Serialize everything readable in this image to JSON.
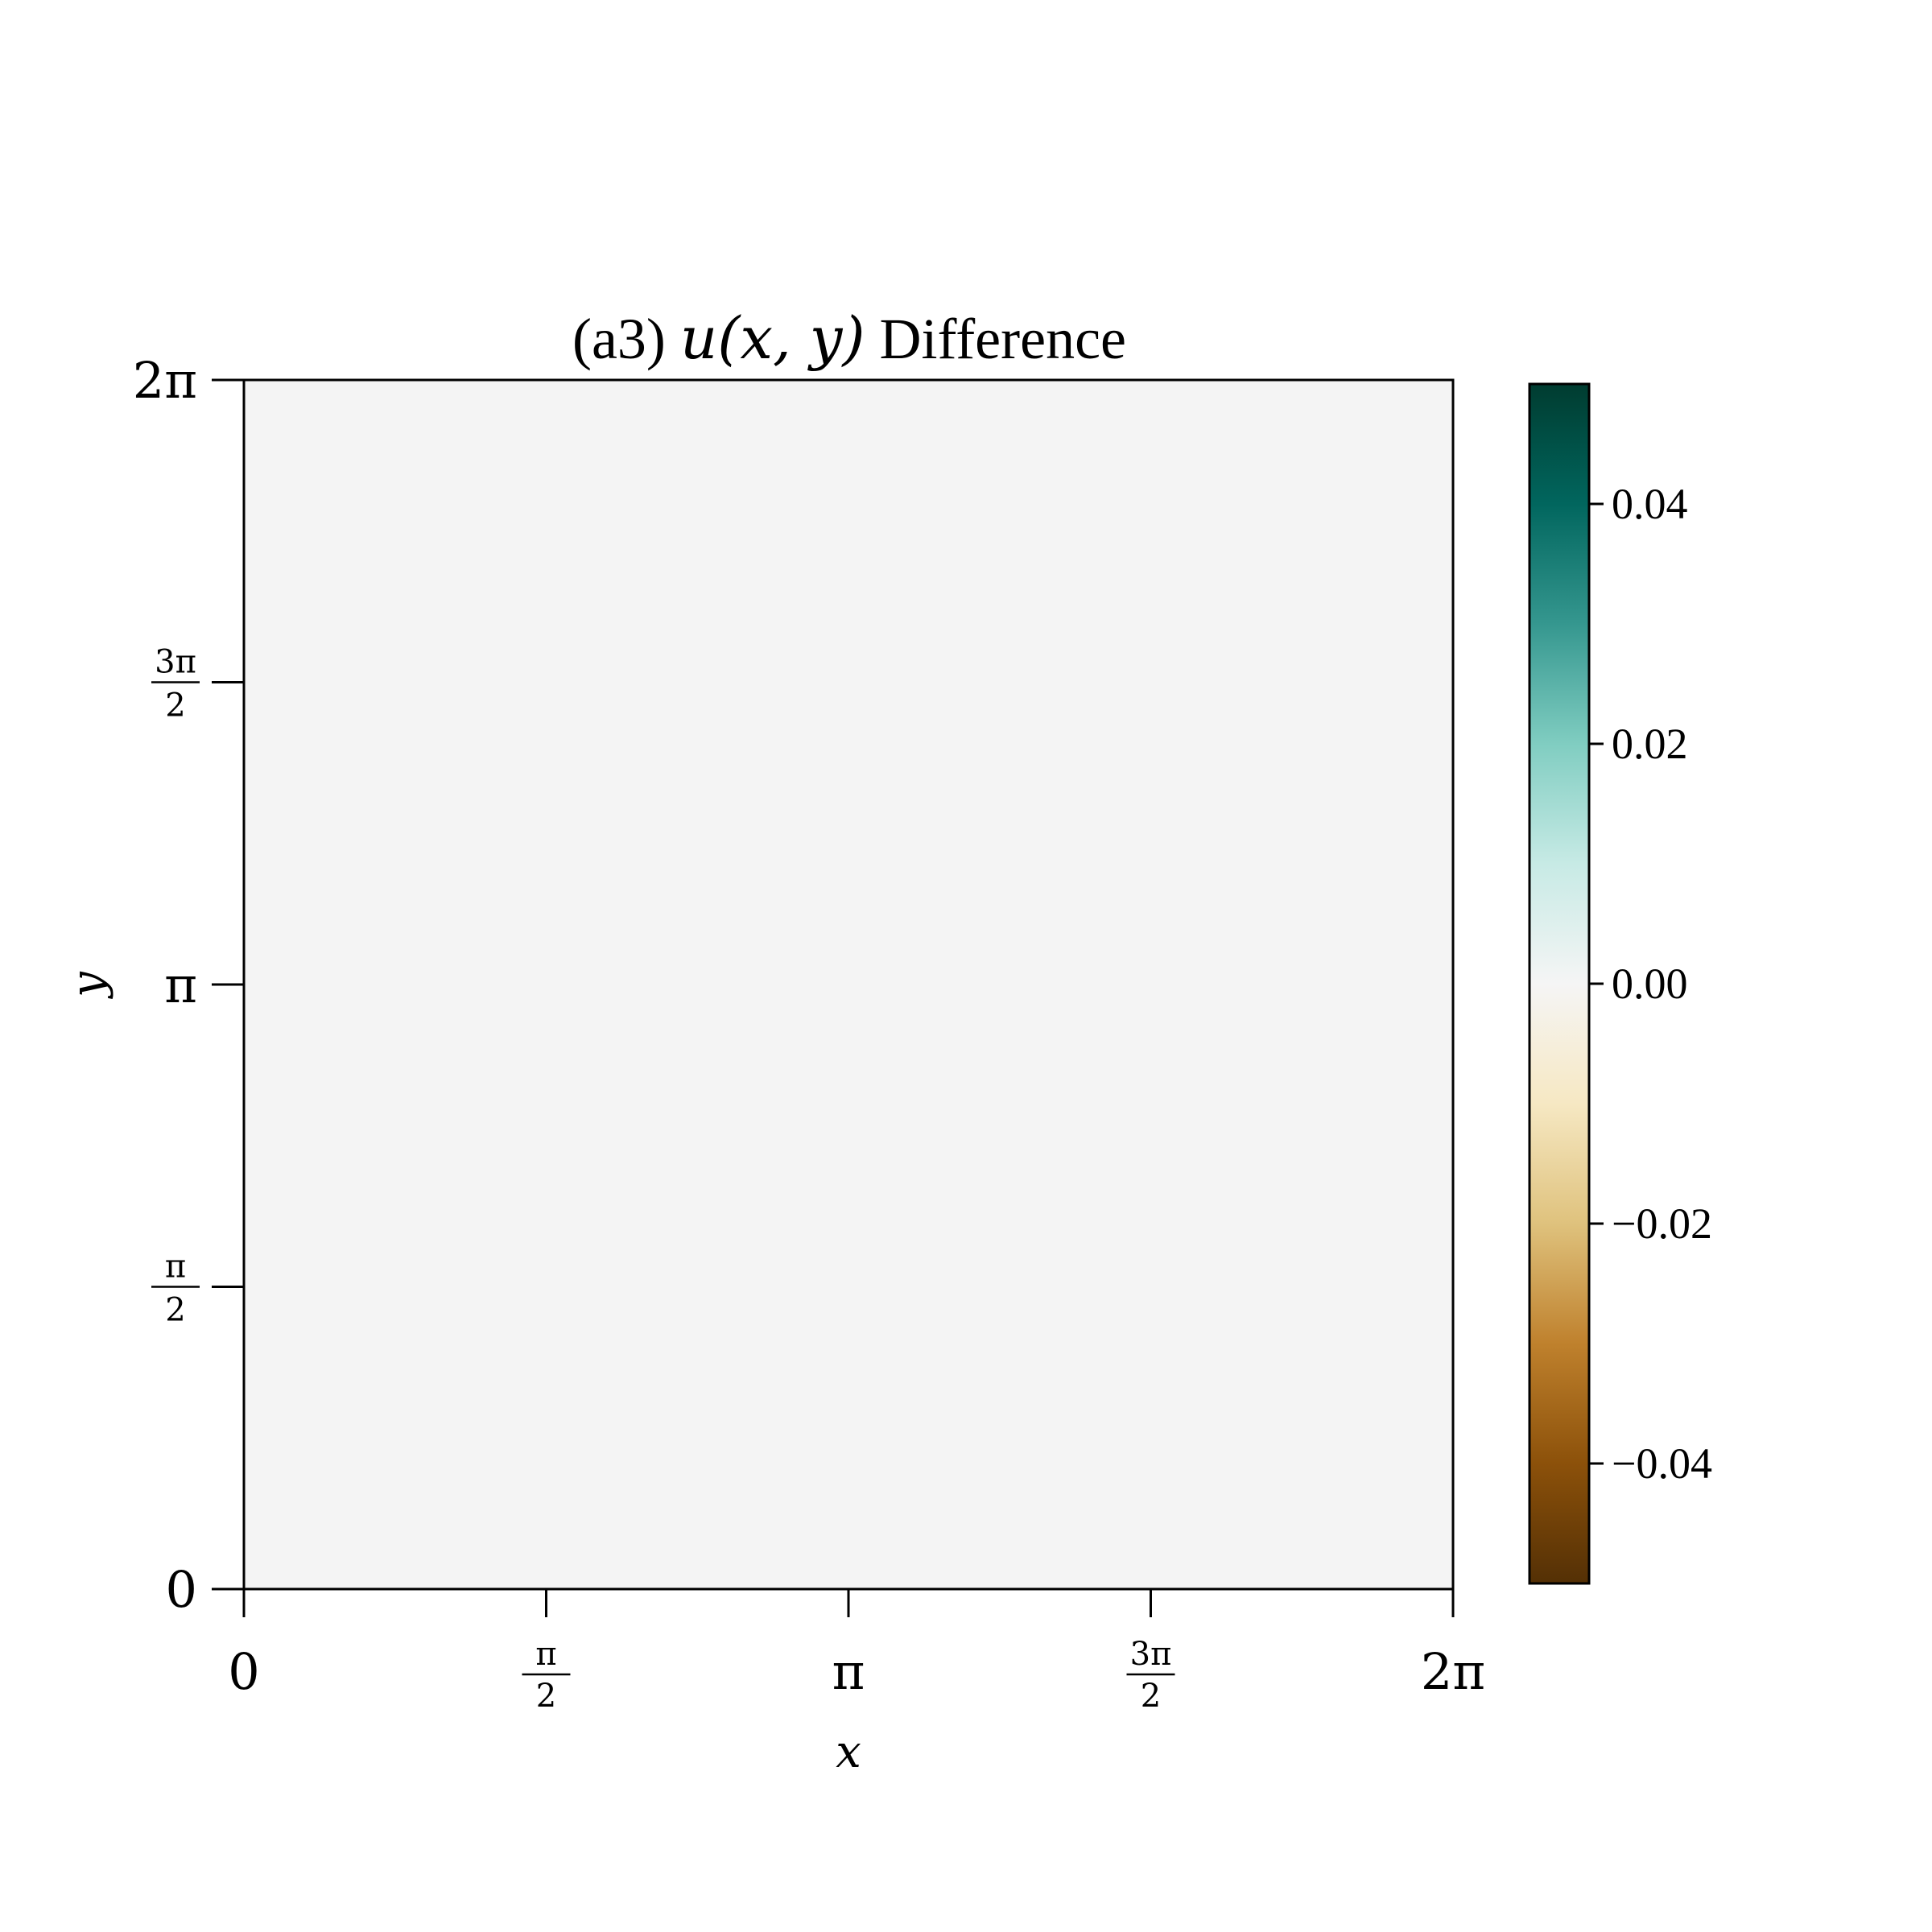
{
  "chart_data": {
    "type": "heatmap",
    "title_prefix": "(a3)",
    "title_math": "u(x, y)",
    "title_suffix": "Difference",
    "xlabel": "x",
    "ylabel": "y",
    "xlim": [
      0,
      6.283185307
    ],
    "ylim": [
      0,
      6.283185307
    ],
    "x_ticks": [
      {
        "value": 0,
        "label": "0",
        "kind": "plain"
      },
      {
        "value": 1.5707963,
        "num": "π",
        "den": "2",
        "kind": "frac"
      },
      {
        "value": 3.1415927,
        "label": "π",
        "kind": "plain"
      },
      {
        "value": 4.712389,
        "num": "3π",
        "den": "2",
        "kind": "frac"
      },
      {
        "value": 6.2831853,
        "label": "2π",
        "kind": "plain"
      }
    ],
    "y_ticks": [
      {
        "value": 0,
        "label": "0",
        "kind": "plain"
      },
      {
        "value": 1.5707963,
        "num": "π",
        "den": "2",
        "kind": "frac"
      },
      {
        "value": 3.1415927,
        "label": "π",
        "kind": "plain"
      },
      {
        "value": 4.712389,
        "num": "3π",
        "den": "2",
        "kind": "frac"
      },
      {
        "value": 6.2831853,
        "label": "2π",
        "kind": "plain"
      }
    ],
    "field_value": 0.0,
    "field_color": "#f4f4f4",
    "colorbar": {
      "colormap": "BrBG",
      "vmin": -0.05,
      "vmax": 0.05,
      "ticks": [
        {
          "value": 0.04,
          "label": "0.04"
        },
        {
          "value": 0.02,
          "label": "0.02"
        },
        {
          "value": 0.0,
          "label": "0.00"
        },
        {
          "value": -0.02,
          "label": "−0.02"
        },
        {
          "value": -0.04,
          "label": "−0.04"
        }
      ],
      "stops": [
        "#543005",
        "#8c510a",
        "#bf812d",
        "#dfc27d",
        "#f6e8c3",
        "#f5f5f5",
        "#c7eae5",
        "#80cdc1",
        "#35978f",
        "#01665e",
        "#003c30"
      ]
    },
    "grid": false
  }
}
